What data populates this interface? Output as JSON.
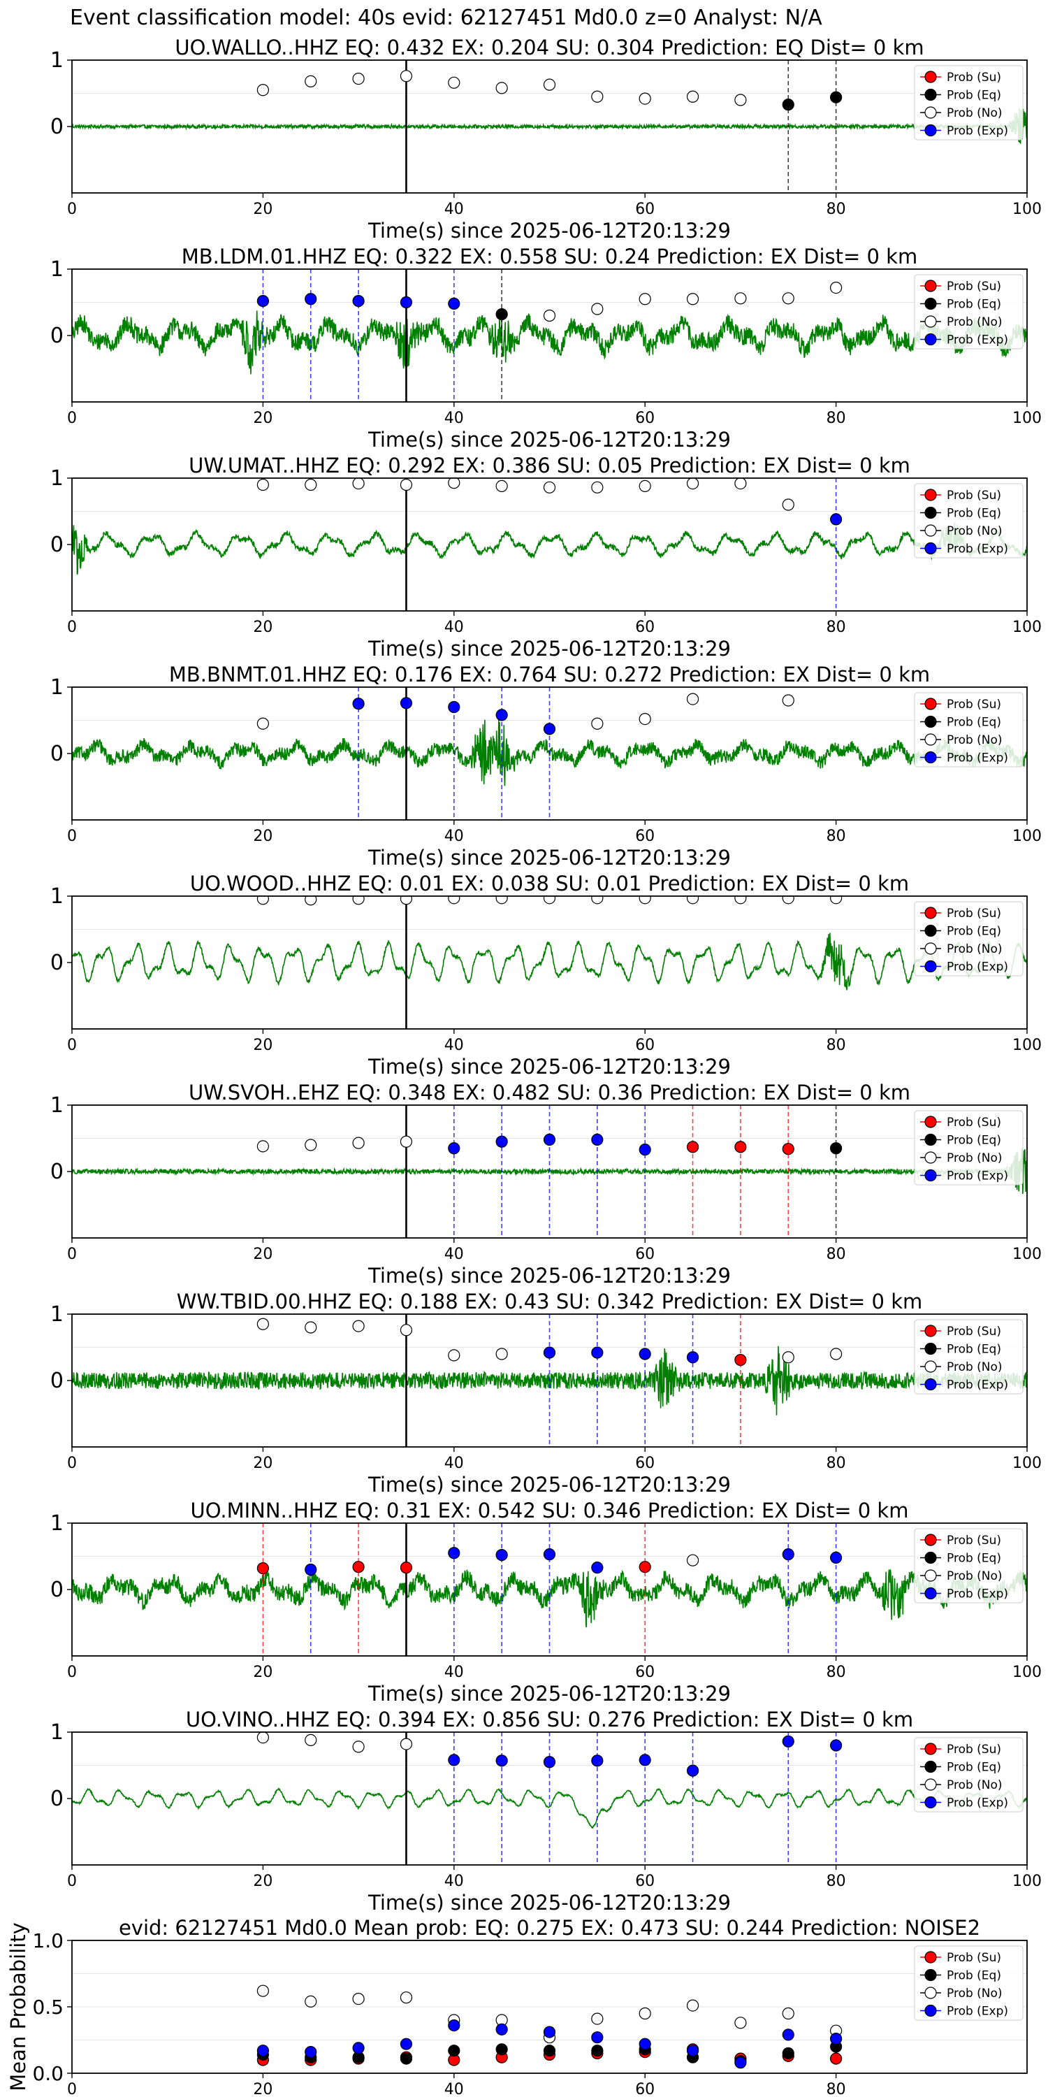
{
  "suptitle": "Event classification model: 40s evid: 62127451 Md0.0 z=0 Analyst: N/A",
  "chart_data": [
    {
      "type": "line",
      "title": "UO.WALLO..HHZ   EQ: 0.432  EX: 0.204  SU: 0.304   Prediction: EQ    Dist= 0 km",
      "xlabel": "Time(s) since 2025-06-12T20:13:29",
      "xlim": [
        0,
        100
      ],
      "xticks": [
        0,
        20,
        40,
        60,
        80,
        100
      ],
      "ylim": [
        -1,
        1
      ],
      "yticks": [
        0,
        1
      ],
      "legend_position": "top-right",
      "legend": [
        "Prob (Su)",
        "Prob (Eq)",
        "Prob (No)",
        "Prob (Exp)"
      ],
      "waveform": {
        "amplitude": 0.06,
        "character": "noise",
        "events": [
          {
            "t": 99.5,
            "amp": 0.6
          }
        ]
      },
      "vline_solid": 35,
      "series": [
        {
          "name": "Prob (No)",
          "x": [
            20,
            25,
            30,
            35,
            40,
            45,
            50,
            55,
            60,
            65,
            70
          ],
          "y": [
            0.55,
            0.68,
            0.72,
            0.76,
            0.66,
            0.58,
            0.63,
            0.45,
            0.42,
            0.45,
            0.4
          ]
        },
        {
          "name": "Prob (Eq)",
          "x": [
            75,
            80
          ],
          "y": [
            0.33,
            0.44
          ]
        }
      ],
      "dashed": [
        {
          "x": 75,
          "color": "black"
        },
        {
          "x": 80,
          "color": "black"
        }
      ]
    },
    {
      "type": "line",
      "title": "MB.LDM.01.HHZ   EQ: 0.322  EX: 0.558  SU: 0.24   Prediction: EX    Dist= 0 km",
      "xlabel": "Time(s) since 2025-06-12T20:13:29",
      "xlim": [
        0,
        100
      ],
      "xticks": [
        0,
        20,
        40,
        60,
        80,
        100
      ],
      "ylim": [
        -1,
        1
      ],
      "yticks": [
        0,
        1
      ],
      "legend_position": "top-right",
      "legend": [
        "Prob (Su)",
        "Prob (Eq)",
        "Prob (No)",
        "Prob (Exp)"
      ],
      "waveform": {
        "amplitude": 0.5,
        "character": "noisy",
        "events": [
          {
            "t": 19,
            "amp": 0.9
          },
          {
            "t": 35,
            "amp": 0.7
          },
          {
            "t": 45,
            "amp": 0.7
          }
        ]
      },
      "vline_solid": 35,
      "series": [
        {
          "name": "Prob (Exp)",
          "x": [
            20,
            25,
            30,
            35,
            40
          ],
          "y": [
            0.52,
            0.55,
            0.52,
            0.5,
            0.48
          ]
        },
        {
          "name": "Prob (Eq)",
          "x": [
            45
          ],
          "y": [
            0.32
          ]
        },
        {
          "name": "Prob (No)",
          "x": [
            50,
            55,
            60,
            65,
            70,
            75,
            80
          ],
          "y": [
            0.3,
            0.4,
            0.55,
            0.55,
            0.56,
            0.56,
            0.72
          ]
        }
      ],
      "dashed": [
        {
          "x": 20,
          "color": "blue"
        },
        {
          "x": 25,
          "color": "blue"
        },
        {
          "x": 30,
          "color": "blue"
        },
        {
          "x": 40,
          "color": "blue"
        },
        {
          "x": 45,
          "color": "black"
        }
      ]
    },
    {
      "type": "line",
      "title": "UW.UMAT..HHZ   EQ: 0.292  EX: 0.386  SU: 0.05   Prediction: EX    Dist= 0 km",
      "xlabel": "Time(s) since 2025-06-12T20:13:29",
      "xlim": [
        0,
        100
      ],
      "xticks": [
        0,
        20,
        40,
        60,
        80,
        100
      ],
      "ylim": [
        -1,
        1
      ],
      "yticks": [
        0,
        1
      ],
      "legend_position": "top-right",
      "legend": [
        "Prob (Su)",
        "Prob (Eq)",
        "Prob (No)",
        "Prob (Exp)"
      ],
      "waveform": {
        "amplitude": 0.35,
        "character": "wavy",
        "events": [
          {
            "t": 0.5,
            "amp": 0.8
          },
          {
            "t": 92,
            "amp": 0.5
          }
        ]
      },
      "vline_solid": 35,
      "series": [
        {
          "name": "Prob (No)",
          "x": [
            20,
            25,
            30,
            35,
            40,
            45,
            50,
            55,
            60,
            65,
            70,
            75
          ],
          "y": [
            0.9,
            0.9,
            0.92,
            0.9,
            0.93,
            0.88,
            0.86,
            0.86,
            0.88,
            0.92,
            0.92,
            0.6
          ]
        },
        {
          "name": "Prob (Exp)",
          "x": [
            80
          ],
          "y": [
            0.38
          ]
        }
      ],
      "dashed": [
        {
          "x": 80,
          "color": "blue"
        }
      ]
    },
    {
      "type": "line",
      "title": "MB.BNMT.01.HHZ   EQ: 0.176  EX: 0.764  SU: 0.272   Prediction: EX    Dist= 0 km",
      "xlabel": "Time(s) since 2025-06-12T20:13:29",
      "xlim": [
        0,
        100
      ],
      "xticks": [
        0,
        20,
        40,
        60,
        80,
        100
      ],
      "ylim": [
        -1,
        1
      ],
      "yticks": [
        0,
        1
      ],
      "legend_position": "top-right",
      "legend": [
        "Prob (Su)",
        "Prob (Eq)",
        "Prob (No)",
        "Prob (Exp)"
      ],
      "waveform": {
        "amplitude": 0.35,
        "character": "noisy",
        "events": [
          {
            "t": 43,
            "amp": 1.0
          },
          {
            "t": 45,
            "amp": 0.9
          }
        ]
      },
      "vline_solid": 35,
      "series": [
        {
          "name": "Prob (No)",
          "x": [
            20,
            55,
            60,
            65,
            75
          ],
          "y": [
            0.45,
            0.45,
            0.52,
            0.82,
            0.8
          ]
        },
        {
          "name": "Prob (Exp)",
          "x": [
            30,
            35,
            40,
            45,
            50
          ],
          "y": [
            0.75,
            0.76,
            0.7,
            0.58,
            0.37
          ]
        }
      ],
      "dashed": [
        {
          "x": 30,
          "color": "blue"
        },
        {
          "x": 40,
          "color": "blue"
        },
        {
          "x": 45,
          "color": "blue"
        },
        {
          "x": 50,
          "color": "blue"
        }
      ]
    },
    {
      "type": "line",
      "title": "UO.WOOD..HHZ   EQ: 0.01  EX: 0.038  SU: 0.01   Prediction: EX    Dist= 0 km",
      "xlabel": "Time(s) since 2025-06-12T20:13:29",
      "xlim": [
        0,
        100
      ],
      "xticks": [
        0,
        20,
        40,
        60,
        80,
        100
      ],
      "ylim": [
        -1,
        1
      ],
      "yticks": [
        0,
        1
      ],
      "legend_position": "top-right",
      "legend": [
        "Prob (Su)",
        "Prob (Eq)",
        "Prob (No)",
        "Prob (Exp)"
      ],
      "waveform": {
        "amplitude": 0.55,
        "character": "smooth",
        "events": [
          {
            "t": 80,
            "amp": 0.9
          }
        ]
      },
      "vline_solid": 35,
      "series": [
        {
          "name": "Prob (No)",
          "x": [
            20,
            25,
            30,
            35,
            40,
            45,
            50,
            55,
            60,
            65,
            70,
            75,
            80
          ],
          "y": [
            0.96,
            0.95,
            0.96,
            0.96,
            0.97,
            0.97,
            0.97,
            0.97,
            0.97,
            0.97,
            0.97,
            0.97,
            0.97
          ]
        }
      ],
      "dashed": []
    },
    {
      "type": "line",
      "title": "UW.SVOH..EHZ   EQ: 0.348  EX: 0.482  SU: 0.36   Prediction: EX    Dist= 0 km",
      "xlabel": "Time(s) since 2025-06-12T20:13:29",
      "xlim": [
        0,
        100
      ],
      "xticks": [
        0,
        20,
        40,
        60,
        80,
        100
      ],
      "ylim": [
        -1,
        1
      ],
      "yticks": [
        0,
        1
      ],
      "legend_position": "top-right",
      "legend": [
        "Prob (Su)",
        "Prob (Eq)",
        "Prob (No)",
        "Prob (Exp)"
      ],
      "waveform": {
        "amplitude": 0.08,
        "character": "noise",
        "events": [
          {
            "t": 99.5,
            "amp": 0.9
          }
        ]
      },
      "vline_solid": 35,
      "series": [
        {
          "name": "Prob (No)",
          "x": [
            20,
            25,
            30,
            35
          ],
          "y": [
            0.38,
            0.4,
            0.43,
            0.45
          ]
        },
        {
          "name": "Prob (Exp)",
          "x": [
            40,
            45,
            50,
            55,
            60
          ],
          "y": [
            0.35,
            0.45,
            0.48,
            0.48,
            0.33
          ]
        },
        {
          "name": "Prob (Su)",
          "x": [
            65,
            70,
            75
          ],
          "y": [
            0.37,
            0.37,
            0.34
          ]
        },
        {
          "name": "Prob (Eq)",
          "x": [
            80
          ],
          "y": [
            0.35
          ]
        }
      ],
      "dashed": [
        {
          "x": 40,
          "color": "blue"
        },
        {
          "x": 45,
          "color": "blue"
        },
        {
          "x": 50,
          "color": "blue"
        },
        {
          "x": 55,
          "color": "blue"
        },
        {
          "x": 60,
          "color": "blue"
        },
        {
          "x": 65,
          "color": "red"
        },
        {
          "x": 70,
          "color": "red"
        },
        {
          "x": 75,
          "color": "red"
        },
        {
          "x": 80,
          "color": "black"
        }
      ]
    },
    {
      "type": "line",
      "title": "WW.TBID.00.HHZ   EQ: 0.188  EX: 0.43  SU: 0.342   Prediction: EX    Dist= 0 km",
      "xlabel": "Time(s) since 2025-06-12T20:13:29",
      "xlim": [
        0,
        100
      ],
      "xticks": [
        0,
        20,
        40,
        60,
        80,
        100
      ],
      "ylim": [
        -1,
        1
      ],
      "yticks": [
        0,
        1
      ],
      "legend_position": "top-right",
      "legend": [
        "Prob (Su)",
        "Prob (Eq)",
        "Prob (No)",
        "Prob (Exp)"
      ],
      "waveform": {
        "amplitude": 0.28,
        "character": "noise",
        "events": [
          {
            "t": 62,
            "amp": 0.8
          },
          {
            "t": 74,
            "amp": 1.0
          }
        ]
      },
      "vline_solid": 35,
      "series": [
        {
          "name": "Prob (No)",
          "x": [
            20,
            25,
            30,
            35,
            40,
            45,
            75,
            80
          ],
          "y": [
            0.85,
            0.8,
            0.82,
            0.76,
            0.38,
            0.4,
            0.35,
            0.4
          ]
        },
        {
          "name": "Prob (Exp)",
          "x": [
            50,
            55,
            60,
            65
          ],
          "y": [
            0.42,
            0.42,
            0.4,
            0.35
          ]
        },
        {
          "name": "Prob (Su)",
          "x": [
            70
          ],
          "y": [
            0.31
          ]
        }
      ],
      "dashed": [
        {
          "x": 50,
          "color": "blue"
        },
        {
          "x": 55,
          "color": "blue"
        },
        {
          "x": 60,
          "color": "blue"
        },
        {
          "x": 65,
          "color": "blue"
        },
        {
          "x": 70,
          "color": "red"
        }
      ]
    },
    {
      "type": "line",
      "title": "UO.MINN..HHZ   EQ: 0.31  EX: 0.542  SU: 0.346   Prediction: EX    Dist= 0 km",
      "xlabel": "Time(s) since 2025-06-12T20:13:29",
      "xlim": [
        0,
        100
      ],
      "xticks": [
        0,
        20,
        40,
        60,
        80,
        100
      ],
      "ylim": [
        -1,
        1
      ],
      "yticks": [
        0,
        1
      ],
      "legend_position": "top-right",
      "legend": [
        "Prob (Su)",
        "Prob (Eq)",
        "Prob (No)",
        "Prob (Exp)"
      ],
      "waveform": {
        "amplitude": 0.45,
        "character": "noisy",
        "events": [
          {
            "t": 54,
            "amp": 0.9
          },
          {
            "t": 86,
            "amp": 0.9
          }
        ]
      },
      "vline_solid": 35,
      "series": [
        {
          "name": "Prob (Su)",
          "x": [
            20,
            30,
            35,
            60
          ],
          "y": [
            0.32,
            0.34,
            0.33,
            0.34
          ]
        },
        {
          "name": "Prob (Exp)",
          "x": [
            25,
            40,
            45,
            50,
            55,
            75,
            80
          ],
          "y": [
            0.3,
            0.55,
            0.52,
            0.53,
            0.33,
            0.53,
            0.48
          ]
        },
        {
          "name": "Prob (No)",
          "x": [
            65
          ],
          "y": [
            0.44
          ]
        }
      ],
      "dashed": [
        {
          "x": 20,
          "color": "red"
        },
        {
          "x": 25,
          "color": "blue"
        },
        {
          "x": 30,
          "color": "red"
        },
        {
          "x": 40,
          "color": "blue"
        },
        {
          "x": 45,
          "color": "blue"
        },
        {
          "x": 50,
          "color": "blue"
        },
        {
          "x": 60,
          "color": "red"
        },
        {
          "x": 75,
          "color": "blue"
        },
        {
          "x": 80,
          "color": "blue"
        }
      ]
    },
    {
      "type": "line",
      "title": "UO.VINO..HHZ   EQ: 0.394  EX: 0.856  SU: 0.276   Prediction: EX    Dist= 0 km",
      "xlabel": "Time(s) since 2025-06-12T20:13:29",
      "xlim": [
        0,
        100
      ],
      "xticks": [
        0,
        20,
        40,
        60,
        80,
        100
      ],
      "ylim": [
        -1,
        1
      ],
      "yticks": [
        0,
        1
      ],
      "legend_position": "top-right",
      "legend": [
        "Prob (Su)",
        "Prob (Eq)",
        "Prob (No)",
        "Prob (Exp)"
      ],
      "waveform": {
        "amplitude": 0.25,
        "character": "smooth",
        "events": [
          {
            "t": 54.5,
            "amp": -0.95
          }
        ]
      },
      "vline_solid": 35,
      "series": [
        {
          "name": "Prob (No)",
          "x": [
            20,
            25,
            30,
            35
          ],
          "y": [
            0.92,
            0.88,
            0.78,
            0.82
          ]
        },
        {
          "name": "Prob (Exp)",
          "x": [
            40,
            45,
            50,
            55,
            60,
            65,
            75,
            80
          ],
          "y": [
            0.58,
            0.57,
            0.55,
            0.57,
            0.58,
            0.42,
            0.86,
            0.8
          ]
        }
      ],
      "dashed": [
        {
          "x": 40,
          "color": "blue"
        },
        {
          "x": 45,
          "color": "blue"
        },
        {
          "x": 50,
          "color": "blue"
        },
        {
          "x": 55,
          "color": "blue"
        },
        {
          "x": 60,
          "color": "blue"
        },
        {
          "x": 65,
          "color": "blue"
        },
        {
          "x": 75,
          "color": "blue"
        },
        {
          "x": 80,
          "color": "blue"
        }
      ]
    },
    {
      "type": "scatter",
      "title": "evid: 62127451  Md0.0   Mean prob:    EQ: 0.275  EX: 0.473  SU: 0.244    Prediction: NOISE2",
      "ylabel": "Mean Probability",
      "xlim": [
        0,
        100
      ],
      "xticks": [
        0,
        20,
        40,
        60,
        80
      ],
      "ylim": [
        0,
        1.0
      ],
      "yticks": [
        0.0,
        0.5,
        1.0
      ],
      "legend_position": "top-right",
      "legend": [
        "Prob (Su)",
        "Prob (Eq)",
        "Prob (No)",
        "Prob (Exp)"
      ],
      "series": [
        {
          "name": "Prob (Su)",
          "x": [
            20,
            25,
            30,
            35,
            40,
            45,
            50,
            55,
            60,
            65,
            70,
            75,
            80
          ],
          "y": [
            0.1,
            0.1,
            0.11,
            0.12,
            0.1,
            0.12,
            0.14,
            0.15,
            0.16,
            0.18,
            0.11,
            0.13,
            0.11
          ]
        },
        {
          "name": "Prob (Eq)",
          "x": [
            20,
            25,
            30,
            35,
            40,
            45,
            50,
            55,
            60,
            65,
            70,
            75,
            80
          ],
          "y": [
            0.14,
            0.12,
            0.12,
            0.11,
            0.17,
            0.18,
            0.17,
            0.17,
            0.18,
            0.12,
            0.09,
            0.15,
            0.2
          ]
        },
        {
          "name": "Prob (No)",
          "x": [
            20,
            25,
            30,
            35,
            40,
            45,
            50,
            55,
            60,
            65,
            70,
            75,
            80
          ],
          "y": [
            0.62,
            0.54,
            0.56,
            0.57,
            0.4,
            0.4,
            0.27,
            0.41,
            0.45,
            0.51,
            0.38,
            0.45,
            0.32
          ]
        },
        {
          "name": "Prob (Exp)",
          "x": [
            20,
            25,
            30,
            35,
            40,
            45,
            50,
            55,
            60,
            65,
            70,
            75,
            80
          ],
          "y": [
            0.17,
            0.16,
            0.19,
            0.22,
            0.36,
            0.33,
            0.31,
            0.27,
            0.22,
            0.17,
            0.08,
            0.29,
            0.26
          ]
        }
      ]
    }
  ]
}
